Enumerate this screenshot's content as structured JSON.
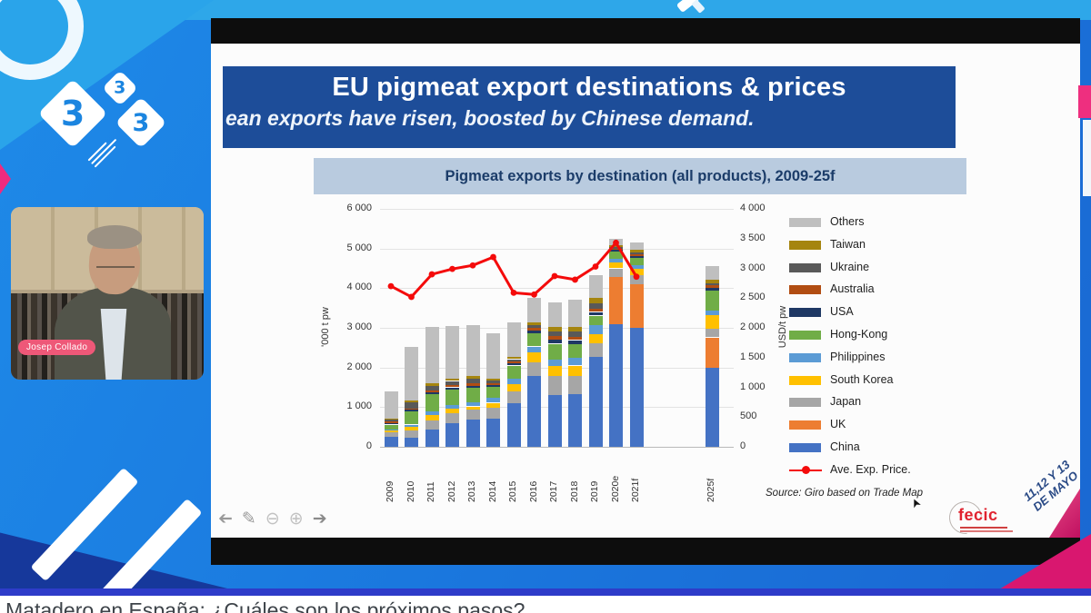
{
  "player": {
    "bottom_title": "Matadero en España: ¿Cuáles son los próximos pasos?"
  },
  "logo333": {
    "digit_large": "3",
    "digit_small": "3",
    "digit_medium": "3"
  },
  "webcam": {
    "name_tag": "Josep Collado"
  },
  "slide": {
    "title": "EU pigmeat export destinations & prices",
    "subtitle": "ean exports have risen, boosted by Chinese demand.",
    "chart_title": "Pigmeat exports by destination (all products), 2009-25f",
    "source": "Source: Giro based on Trade Map",
    "fecic_logo": "fecic",
    "event_date_line1": "11,12 Y 13",
    "event_date_line2": "DE MAYO"
  },
  "toolbar": {
    "prev_icon": "➔",
    "draw_icon": "✎",
    "zoom_out_icon": "⊖",
    "zoom_in_icon": "⊕",
    "next_icon": "➔"
  },
  "chart_data": {
    "type": "stacked-bar+line",
    "title": "Pigmeat exports by destination (all products), 2009-25f",
    "categories": [
      "2009",
      "2010",
      "2011",
      "2012",
      "2013",
      "2014",
      "2015",
      "2016",
      "2017",
      "2018",
      "2019",
      "2020e",
      "2021f",
      "2025f"
    ],
    "unit_left": "'000 t pw",
    "unit_right": "USD/t pw",
    "ylim_left": [
      0,
      6000
    ],
    "ylim_right": [
      0,
      4000
    ],
    "left_ticks": [
      "0",
      "1 000",
      "2 000",
      "3 000",
      "4 000",
      "5 000",
      "6 000"
    ],
    "right_ticks": [
      "0",
      "500",
      "1 000",
      "1 500",
      "2 000",
      "2 500",
      "3 000",
      "3 500",
      "4 000"
    ],
    "series": [
      {
        "name": "China",
        "color": "#4472C4",
        "values": [
          250,
          230,
          430,
          590,
          680,
          720,
          1100,
          1780,
          1300,
          1320,
          2270,
          3090,
          3000,
          2000
        ]
      },
      {
        "name": "UK",
        "color": "#ED7D31",
        "values": [
          0,
          0,
          0,
          0,
          0,
          0,
          0,
          0,
          0,
          0,
          0,
          1190,
          1090,
          760
        ]
      },
      {
        "name": "Japan",
        "color": "#A6A6A6",
        "values": [
          110,
          180,
          230,
          260,
          250,
          260,
          300,
          360,
          480,
          470,
          350,
          220,
          230,
          220
        ]
      },
      {
        "name": "South Korea",
        "color": "#FFC000",
        "values": [
          50,
          90,
          150,
          110,
          90,
          130,
          180,
          240,
          250,
          260,
          230,
          150,
          160,
          350
        ]
      },
      {
        "name": "Philippines",
        "color": "#5B9BD5",
        "values": [
          30,
          60,
          90,
          100,
          110,
          120,
          140,
          150,
          180,
          190,
          230,
          90,
          90,
          100
        ]
      },
      {
        "name": "Hong-Kong",
        "color": "#70AD47",
        "values": [
          120,
          330,
          420,
          390,
          360,
          290,
          330,
          340,
          390,
          350,
          230,
          180,
          200,
          500
        ]
      },
      {
        "name": "USA",
        "color": "#1F3864",
        "values": [
          30,
          40,
          50,
          50,
          50,
          40,
          50,
          60,
          110,
          100,
          90,
          40,
          40,
          80
        ]
      },
      {
        "name": "Australia",
        "color": "#B14D12",
        "values": [
          60,
          40,
          50,
          50,
          60,
          50,
          60,
          70,
          90,
          90,
          90,
          40,
          40,
          60
        ]
      },
      {
        "name": "Ukraine",
        "color": "#595959",
        "values": [
          40,
          150,
          120,
          110,
          120,
          60,
          50,
          60,
          110,
          120,
          130,
          40,
          50,
          60
        ]
      },
      {
        "name": "Taiwan",
        "color": "#A5850F",
        "values": [
          20,
          40,
          60,
          60,
          60,
          50,
          50,
          70,
          110,
          120,
          140,
          50,
          60,
          90
        ]
      },
      {
        "name": "Others",
        "color": "#BFBFBF",
        "values": [
          690,
          1360,
          1430,
          1320,
          1300,
          1150,
          870,
          620,
          620,
          690,
          560,
          160,
          190,
          330
        ]
      }
    ],
    "line": {
      "name": "Ave. Exp. Price.",
      "color": "#F40B0B",
      "axis": "right",
      "values": [
        2700,
        2520,
        2900,
        2990,
        3050,
        3190,
        2590,
        2560,
        2870,
        2810,
        3030,
        3430,
        2860,
        null
      ]
    },
    "legend": [
      {
        "label": "Others",
        "color": "#BFBFBF",
        "type": "box"
      },
      {
        "label": "Taiwan",
        "color": "#A5850F",
        "type": "box"
      },
      {
        "label": "Ukraine",
        "color": "#595959",
        "type": "box"
      },
      {
        "label": "Australia",
        "color": "#B14D12",
        "type": "box"
      },
      {
        "label": "USA",
        "color": "#1F3864",
        "type": "box"
      },
      {
        "label": "Hong-Kong",
        "color": "#70AD47",
        "type": "box"
      },
      {
        "label": "Philippines",
        "color": "#5B9BD5",
        "type": "box"
      },
      {
        "label": "South Korea",
        "color": "#FFC000",
        "type": "box"
      },
      {
        "label": "Japan",
        "color": "#A6A6A6",
        "type": "box"
      },
      {
        "label": "UK",
        "color": "#ED7D31",
        "type": "box"
      },
      {
        "label": "China",
        "color": "#4472C4",
        "type": "box"
      },
      {
        "label": "Ave. Exp. Price.",
        "color": "#F40B0B",
        "type": "line"
      }
    ],
    "grid": true,
    "legend_position": "right"
  }
}
